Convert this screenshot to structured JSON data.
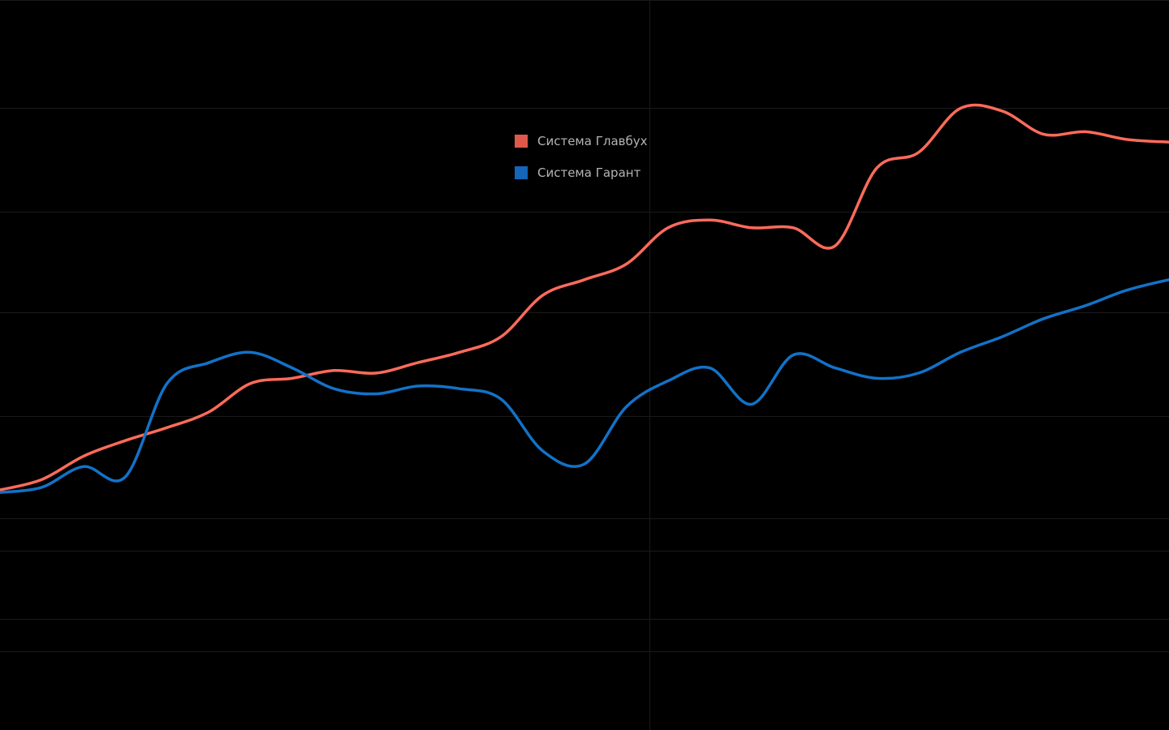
{
  "chart_data": {
    "type": "line",
    "title": "",
    "xlabel": "",
    "ylabel": "",
    "grid": true,
    "legend_position": "top-center",
    "x_count": 29,
    "series": [
      {
        "name": "Система Главбух",
        "color": "#ff6b5b",
        "legend_color": "#e0584c",
        "values": [
          5,
          9,
          18,
          24,
          29,
          35,
          46,
          48,
          51,
          50,
          54,
          58,
          64,
          80,
          86,
          92,
          106,
          109,
          106,
          106,
          99,
          129,
          135,
          152,
          151,
          142,
          143,
          140,
          139
        ]
      },
      {
        "name": "Система Гарант",
        "color": "#1272c8",
        "legend_color": "#1565b8",
        "values": [
          4,
          6,
          14,
          10,
          46,
          54,
          58,
          52,
          44,
          42,
          45,
          44,
          40,
          20,
          15,
          37,
          47,
          52,
          38,
          57,
          52,
          48,
          50,
          58,
          64,
          71,
          76,
          82,
          86
        ]
      }
    ]
  }
}
